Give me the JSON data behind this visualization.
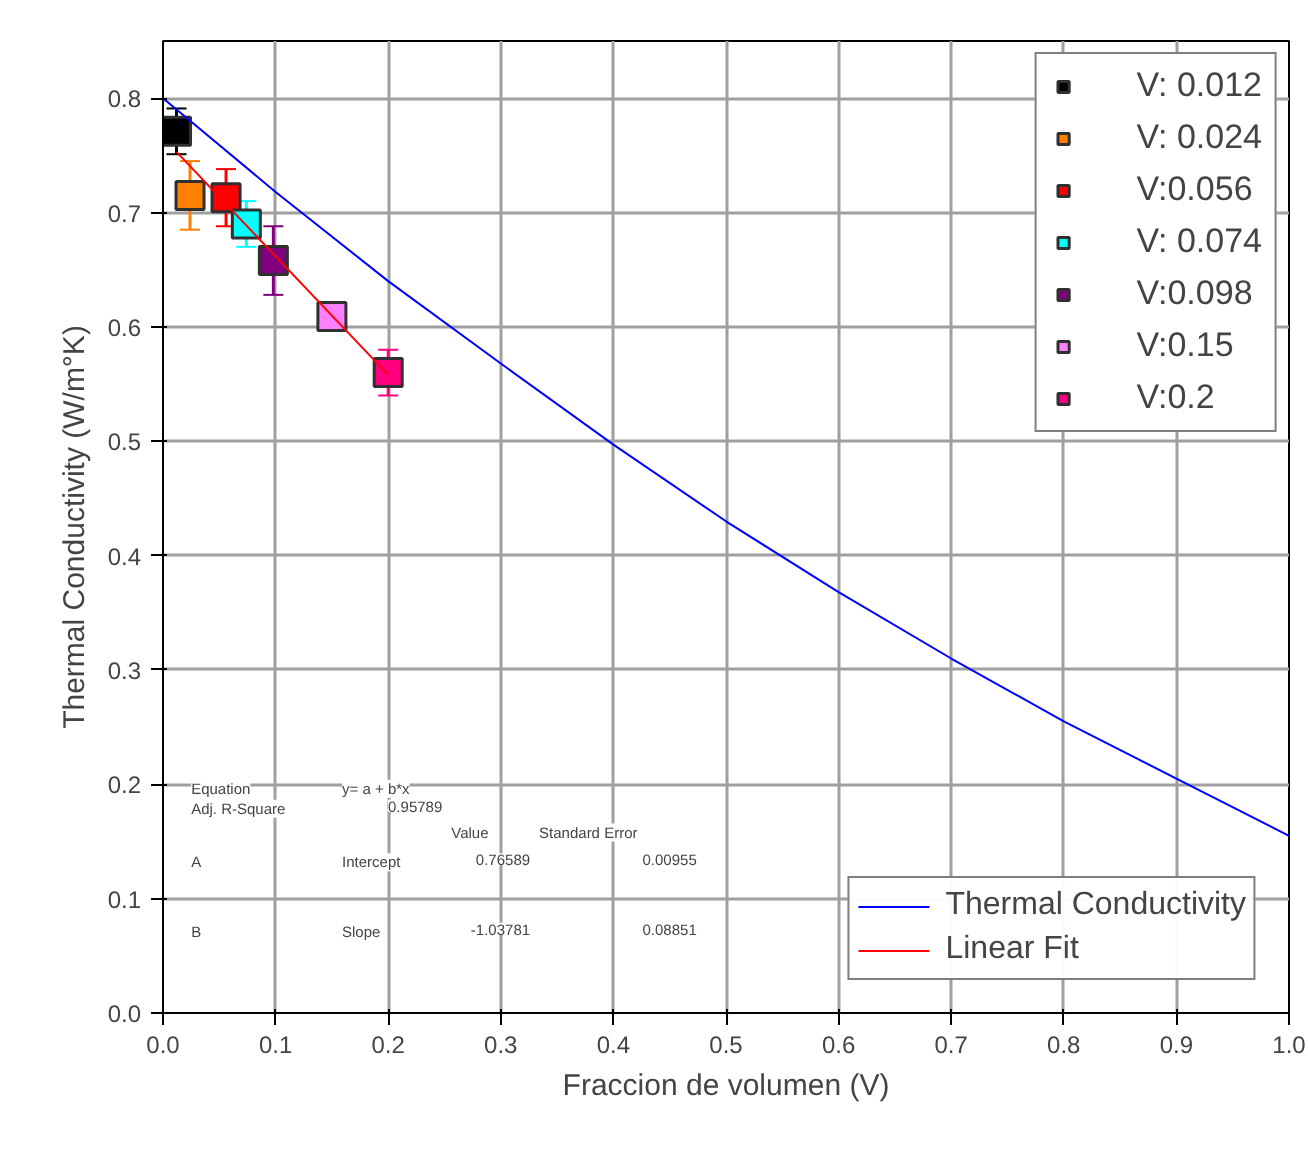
{
  "chart_data": {
    "type": "scatter",
    "xlabel": "Fraccion de volumen (V)",
    "ylabel": "Thermal Conductivity (W/m°K)",
    "xlim": [
      0,
      1
    ],
    "ylim": [
      0,
      0.85
    ],
    "xticks": [
      {
        "value": 0,
        "label": "0.0"
      },
      0.1,
      0.2,
      0.3,
      0.4,
      0.5,
      0.6,
      0.7,
      0.8,
      0.9,
      {
        "value": 1,
        "label": "1.0"
      }
    ],
    "yticks": [
      {
        "value": 0,
        "label": "0.0"
      },
      0.1,
      0.2,
      0.3,
      0.4,
      0.5,
      0.6,
      0.7,
      0.8
    ],
    "grid": true,
    "legend": "top right",
    "marker": "square",
    "series": [
      {
        "name": "V: 0.012",
        "color": "#000000",
        "x": [
          0.012
        ],
        "values": [
          0.771
        ],
        "errors": [
          0.02
        ]
      },
      {
        "name": "V: 0.024",
        "color": "#ff8000",
        "x": [
          0.024
        ],
        "values": [
          0.715
        ],
        "errors": [
          0.03
        ]
      },
      {
        "name": "V:0.056",
        "color": "#ff0000",
        "x": [
          0.056
        ],
        "values": [
          0.713
        ],
        "errors": [
          0.025
        ]
      },
      {
        "name": "V: 0.074",
        "color": "#00ffff",
        "x": [
          0.074
        ],
        "values": [
          0.69
        ],
        "errors": [
          0.02
        ]
      },
      {
        "name": "V:0.098",
        "color": "#800080",
        "x": [
          0.098
        ],
        "values": [
          0.658
        ],
        "errors": [
          0.03
        ]
      },
      {
        "name": "V:0.15",
        "color": "#ff80ff",
        "x": [
          0.15
        ],
        "values": [
          0.609
        ],
        "errors": [
          0.01
        ]
      },
      {
        "name": "V:0.2",
        "color": "#ff0080",
        "x": [
          0.2
        ],
        "values": [
          0.56
        ],
        "errors": [
          0.02
        ]
      },
      {
        "name": "Thermal Conductivity",
        "type": "line",
        "color": "#0000ff",
        "x": [
          0,
          0.1,
          0.2,
          0.3,
          0.4,
          0.5,
          0.6,
          0.7,
          0.8,
          0.9,
          1.0
        ],
        "values": [
          0.8,
          0.718,
          0.64,
          0.568,
          0.497,
          0.43,
          0.368,
          0.31,
          0.255,
          0.205,
          0.155
        ],
        "marker": "none"
      },
      {
        "name": "Linear Fit",
        "type": "line",
        "color": "#ff0000",
        "x": [
          0.012,
          0.2
        ],
        "values": [
          0.753,
          0.558
        ],
        "marker": "none"
      }
    ],
    "annotations": [
      "Equation",
      "y= a + b*x",
      "Adj. R-Square",
      "0.95789",
      "Value",
      "Standard Error",
      "A",
      "Intercept",
      "0.76589",
      "0.00955",
      "B",
      "Slope",
      "-1.03781",
      "0.08851"
    ]
  }
}
